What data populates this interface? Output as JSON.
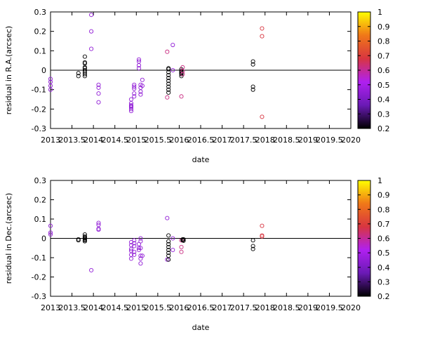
{
  "chart_data": [
    {
      "type": "scatter",
      "xlabel": "date",
      "ylabel": "residual in R.A.(arcsec)",
      "xlim": [
        2013,
        2020
      ],
      "ylim": [
        -0.3,
        0.3
      ],
      "x_ticks": [
        "2013",
        "2013.5",
        "2014",
        "2014.5",
        "2015",
        "2015.5",
        "2016",
        "2016.5",
        "2017",
        "2017.5",
        "2018",
        "2018.5",
        "2019",
        "2019.5",
        "2020"
      ],
      "y_ticks": [
        "-0.3",
        "-0.2",
        "-0.1",
        "0",
        "0.1",
        "0.2",
        "0.3"
      ],
      "zero_line": true,
      "grid": false,
      "marker": "open-circle",
      "colorbar": {
        "range": [
          0.2,
          1
        ],
        "ticks": [
          "1",
          "0.9",
          "0.8",
          "0.7",
          "0.6",
          "0.5",
          "0.4",
          "0.3",
          "0.2"
        ],
        "stops": [
          "#000000",
          "#6a1ab5",
          "#b020f0",
          "#d83540",
          "#f07818",
          "#ffff00"
        ]
      },
      "points": [
        {
          "x": 2013.0,
          "y": -0.045,
          "c": 0.45
        },
        {
          "x": 2013.0,
          "y": -0.06,
          "c": 0.45
        },
        {
          "x": 2013.0,
          "y": -0.08,
          "c": 0.45
        },
        {
          "x": 2013.0,
          "y": -0.1,
          "c": 0.45
        },
        {
          "x": 2013.65,
          "y": -0.015,
          "c": 0.2
        },
        {
          "x": 2013.65,
          "y": -0.03,
          "c": 0.2
        },
        {
          "x": 2013.8,
          "y": 0.07,
          "c": 0.2
        },
        {
          "x": 2013.8,
          "y": 0.04,
          "c": 0.2
        },
        {
          "x": 2013.8,
          "y": 0.035,
          "c": 0.2
        },
        {
          "x": 2013.8,
          "y": 0.015,
          "c": 0.2
        },
        {
          "x": 2013.8,
          "y": 0.01,
          "c": 0.2
        },
        {
          "x": 2013.8,
          "y": 0.0,
          "c": 0.2
        },
        {
          "x": 2013.8,
          "y": -0.01,
          "c": 0.2
        },
        {
          "x": 2013.8,
          "y": -0.02,
          "c": 0.2
        },
        {
          "x": 2013.8,
          "y": -0.03,
          "c": 0.2
        },
        {
          "x": 2013.95,
          "y": 0.285,
          "c": 0.45
        },
        {
          "x": 2013.95,
          "y": 0.2,
          "c": 0.45
        },
        {
          "x": 2013.95,
          "y": 0.11,
          "c": 0.45
        },
        {
          "x": 2014.12,
          "y": -0.075,
          "c": 0.45
        },
        {
          "x": 2014.12,
          "y": -0.09,
          "c": 0.45
        },
        {
          "x": 2014.12,
          "y": -0.12,
          "c": 0.45
        },
        {
          "x": 2014.12,
          "y": -0.165,
          "c": 0.45
        },
        {
          "x": 2014.88,
          "y": -0.15,
          "c": 0.45
        },
        {
          "x": 2014.88,
          "y": -0.17,
          "c": 0.45
        },
        {
          "x": 2014.88,
          "y": -0.18,
          "c": 0.45
        },
        {
          "x": 2014.88,
          "y": -0.185,
          "c": 0.45
        },
        {
          "x": 2014.88,
          "y": -0.19,
          "c": 0.45
        },
        {
          "x": 2014.88,
          "y": -0.2,
          "c": 0.45
        },
        {
          "x": 2014.88,
          "y": -0.21,
          "c": 0.45
        },
        {
          "x": 2014.95,
          "y": -0.075,
          "c": 0.45
        },
        {
          "x": 2014.95,
          "y": -0.085,
          "c": 0.45
        },
        {
          "x": 2014.95,
          "y": -0.095,
          "c": 0.45
        },
        {
          "x": 2014.95,
          "y": -0.12,
          "c": 0.45
        },
        {
          "x": 2014.95,
          "y": -0.135,
          "c": 0.45
        },
        {
          "x": 2015.06,
          "y": 0.055,
          "c": 0.45
        },
        {
          "x": 2015.06,
          "y": 0.045,
          "c": 0.45
        },
        {
          "x": 2015.06,
          "y": 0.025,
          "c": 0.45
        },
        {
          "x": 2015.06,
          "y": 0.01,
          "c": 0.45
        },
        {
          "x": 2015.1,
          "y": -0.075,
          "c": 0.45
        },
        {
          "x": 2015.1,
          "y": -0.09,
          "c": 0.45
        },
        {
          "x": 2015.1,
          "y": -0.11,
          "c": 0.45
        },
        {
          "x": 2015.1,
          "y": -0.125,
          "c": 0.45
        },
        {
          "x": 2015.14,
          "y": -0.05,
          "c": 0.45
        },
        {
          "x": 2015.14,
          "y": -0.08,
          "c": 0.45
        },
        {
          "x": 2015.72,
          "y": 0.095,
          "c": 0.62
        },
        {
          "x": 2015.72,
          "y": -0.14,
          "c": 0.62
        },
        {
          "x": 2015.75,
          "y": 0.01,
          "c": 0.2
        },
        {
          "x": 2015.75,
          "y": 0.005,
          "c": 0.2
        },
        {
          "x": 2015.75,
          "y": -0.01,
          "c": 0.2
        },
        {
          "x": 2015.75,
          "y": -0.025,
          "c": 0.2
        },
        {
          "x": 2015.75,
          "y": -0.04,
          "c": 0.2
        },
        {
          "x": 2015.75,
          "y": -0.055,
          "c": 0.2
        },
        {
          "x": 2015.75,
          "y": -0.07,
          "c": 0.2
        },
        {
          "x": 2015.75,
          "y": -0.085,
          "c": 0.2
        },
        {
          "x": 2015.75,
          "y": -0.1,
          "c": 0.2
        },
        {
          "x": 2015.75,
          "y": -0.115,
          "c": 0.2
        },
        {
          "x": 2015.85,
          "y": 0.13,
          "c": 0.45
        },
        {
          "x": 2015.85,
          "y": 0.0,
          "c": 0.45
        },
        {
          "x": 2016.05,
          "y": 0.005,
          "c": 0.2
        },
        {
          "x": 2016.05,
          "y": -0.005,
          "c": 0.2
        },
        {
          "x": 2016.05,
          "y": -0.01,
          "c": 0.2
        },
        {
          "x": 2016.05,
          "y": -0.015,
          "c": 0.2
        },
        {
          "x": 2016.05,
          "y": -0.02,
          "c": 0.2
        },
        {
          "x": 2016.05,
          "y": -0.03,
          "c": 0.2
        },
        {
          "x": 2016.08,
          "y": 0.015,
          "c": 0.62
        },
        {
          "x": 2016.08,
          "y": -0.005,
          "c": 0.62
        },
        {
          "x": 2016.08,
          "y": -0.02,
          "c": 0.62
        },
        {
          "x": 2016.05,
          "y": -0.135,
          "c": 0.62
        },
        {
          "x": 2017.72,
          "y": 0.045,
          "c": 0.2
        },
        {
          "x": 2017.72,
          "y": 0.03,
          "c": 0.2
        },
        {
          "x": 2017.72,
          "y": -0.085,
          "c": 0.2
        },
        {
          "x": 2017.72,
          "y": -0.1,
          "c": 0.2
        },
        {
          "x": 2017.93,
          "y": 0.215,
          "c": 0.68
        },
        {
          "x": 2017.93,
          "y": 0.175,
          "c": 0.68
        },
        {
          "x": 2017.93,
          "y": -0.24,
          "c": 0.68
        }
      ]
    },
    {
      "type": "scatter",
      "xlabel": "date",
      "ylabel": "residual in Dec.(arcsec)",
      "xlim": [
        2013,
        2020
      ],
      "ylim": [
        -0.3,
        0.3
      ],
      "x_ticks": [
        "2013",
        "2013.5",
        "2014",
        "2014.5",
        "2015",
        "2015.5",
        "2016",
        "2016.5",
        "2017",
        "2017.5",
        "2018",
        "2018.5",
        "2019",
        "2019.5",
        "2020"
      ],
      "y_ticks": [
        "-0.3",
        "-0.2",
        "-0.1",
        "0",
        "0.1",
        "0.2",
        "0.3"
      ],
      "zero_line": true,
      "grid": false,
      "marker": "open-circle",
      "colorbar": {
        "range": [
          0.2,
          1
        ],
        "ticks": [
          "1",
          "0.9",
          "0.8",
          "0.7",
          "0.6",
          "0.5",
          "0.4",
          "0.3",
          "0.2"
        ],
        "stops": [
          "#000000",
          "#6a1ab5",
          "#b020f0",
          "#d83540",
          "#f07818",
          "#ffff00"
        ]
      },
      "points": [
        {
          "x": 2013.0,
          "y": 0.065,
          "c": 0.45
        },
        {
          "x": 2013.0,
          "y": 0.03,
          "c": 0.45
        },
        {
          "x": 2013.0,
          "y": 0.02,
          "c": 0.45
        },
        {
          "x": 2013.65,
          "y": -0.005,
          "c": 0.2
        },
        {
          "x": 2013.65,
          "y": -0.01,
          "c": 0.2
        },
        {
          "x": 2013.8,
          "y": 0.02,
          "c": 0.2
        },
        {
          "x": 2013.8,
          "y": 0.01,
          "c": 0.2
        },
        {
          "x": 2013.8,
          "y": 0.005,
          "c": 0.2
        },
        {
          "x": 2013.8,
          "y": 0.0,
          "c": 0.2
        },
        {
          "x": 2013.8,
          "y": -0.005,
          "c": 0.2
        },
        {
          "x": 2013.8,
          "y": -0.01,
          "c": 0.2
        },
        {
          "x": 2013.8,
          "y": -0.015,
          "c": 0.2
        },
        {
          "x": 2013.95,
          "y": -0.165,
          "c": 0.45
        },
        {
          "x": 2014.12,
          "y": 0.08,
          "c": 0.45
        },
        {
          "x": 2014.12,
          "y": 0.07,
          "c": 0.45
        },
        {
          "x": 2014.12,
          "y": 0.05,
          "c": 0.45
        },
        {
          "x": 2014.12,
          "y": 0.045,
          "c": 0.45
        },
        {
          "x": 2014.88,
          "y": -0.02,
          "c": 0.45
        },
        {
          "x": 2014.88,
          "y": -0.035,
          "c": 0.45
        },
        {
          "x": 2014.88,
          "y": -0.055,
          "c": 0.45
        },
        {
          "x": 2014.88,
          "y": -0.065,
          "c": 0.45
        },
        {
          "x": 2014.88,
          "y": -0.085,
          "c": 0.45
        },
        {
          "x": 2014.88,
          "y": -0.105,
          "c": 0.45
        },
        {
          "x": 2014.95,
          "y": -0.01,
          "c": 0.45
        },
        {
          "x": 2014.95,
          "y": -0.025,
          "c": 0.45
        },
        {
          "x": 2014.95,
          "y": -0.04,
          "c": 0.45
        },
        {
          "x": 2014.95,
          "y": -0.07,
          "c": 0.45
        },
        {
          "x": 2014.95,
          "y": -0.085,
          "c": 0.45
        },
        {
          "x": 2015.06,
          "y": -0.03,
          "c": 0.45
        },
        {
          "x": 2015.06,
          "y": -0.05,
          "c": 0.45
        },
        {
          "x": 2015.06,
          "y": -0.06,
          "c": 0.45
        },
        {
          "x": 2015.1,
          "y": 0.0,
          "c": 0.45
        },
        {
          "x": 2015.1,
          "y": -0.015,
          "c": 0.45
        },
        {
          "x": 2015.1,
          "y": -0.05,
          "c": 0.45
        },
        {
          "x": 2015.1,
          "y": -0.09,
          "c": 0.45
        },
        {
          "x": 2015.1,
          "y": -0.105,
          "c": 0.45
        },
        {
          "x": 2015.1,
          "y": -0.13,
          "c": 0.45
        },
        {
          "x": 2015.14,
          "y": -0.09,
          "c": 0.45
        },
        {
          "x": 2015.72,
          "y": 0.105,
          "c": 0.45
        },
        {
          "x": 2015.72,
          "y": -0.11,
          "c": 0.45
        },
        {
          "x": 2015.75,
          "y": 0.015,
          "c": 0.2
        },
        {
          "x": 2015.75,
          "y": -0.015,
          "c": 0.2
        },
        {
          "x": 2015.75,
          "y": -0.03,
          "c": 0.2
        },
        {
          "x": 2015.75,
          "y": -0.045,
          "c": 0.2
        },
        {
          "x": 2015.75,
          "y": -0.06,
          "c": 0.2
        },
        {
          "x": 2015.75,
          "y": -0.075,
          "c": 0.2
        },
        {
          "x": 2015.75,
          "y": -0.09,
          "c": 0.2
        },
        {
          "x": 2015.75,
          "y": -0.11,
          "c": 0.2
        },
        {
          "x": 2015.85,
          "y": 0.0,
          "c": 0.45
        },
        {
          "x": 2015.85,
          "y": -0.06,
          "c": 0.45
        },
        {
          "x": 2016.05,
          "y": -0.01,
          "c": 0.62
        },
        {
          "x": 2016.05,
          "y": -0.045,
          "c": 0.62
        },
        {
          "x": 2016.05,
          "y": -0.07,
          "c": 0.62
        },
        {
          "x": 2016.08,
          "y": -0.005,
          "c": 0.2
        },
        {
          "x": 2016.08,
          "y": -0.01,
          "c": 0.2
        },
        {
          "x": 2016.1,
          "y": -0.005,
          "c": 0.2
        },
        {
          "x": 2016.1,
          "y": -0.012,
          "c": 0.2
        },
        {
          "x": 2017.72,
          "y": -0.01,
          "c": 0.2
        },
        {
          "x": 2017.72,
          "y": -0.04,
          "c": 0.2
        },
        {
          "x": 2017.72,
          "y": -0.055,
          "c": 0.2
        },
        {
          "x": 2017.93,
          "y": 0.065,
          "c": 0.68
        },
        {
          "x": 2017.93,
          "y": 0.015,
          "c": 0.68
        },
        {
          "x": 2017.93,
          "y": 0.01,
          "c": 0.68
        }
      ]
    }
  ]
}
